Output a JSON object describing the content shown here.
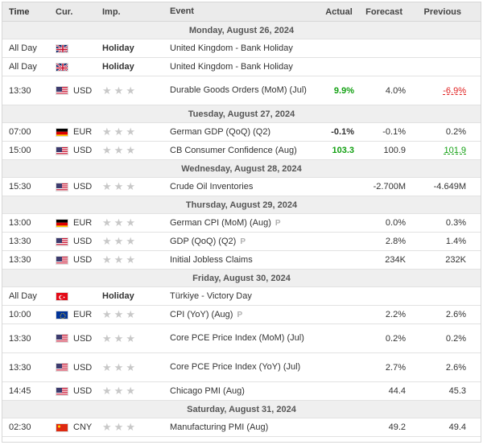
{
  "columns": {
    "time": "Time",
    "currency": "Cur.",
    "importance": "Imp.",
    "event": "Event",
    "actual": "Actual",
    "forecast": "Forecast",
    "previous": "Previous"
  },
  "colors": {
    "positive": "#12a012",
    "negative": "#e02020",
    "star_inactive": "#c8c8c8"
  },
  "days": [
    {
      "date": "Monday, August 26, 2024",
      "events": [
        {
          "time": "All Day",
          "flag": "uk-flag",
          "currency": "",
          "importance_text": "Holiday",
          "event": "United Kingdom - Bank Holiday",
          "actual": "",
          "forecast": "",
          "previous": "",
          "h": "h23"
        },
        {
          "time": "All Day",
          "flag": "uk-flag",
          "currency": "",
          "importance_text": "Holiday",
          "event": "United Kingdom - Bank Holiday",
          "actual": "",
          "forecast": "",
          "previous": "",
          "h": "h23"
        },
        {
          "time": "13:30",
          "flag": "us-flag",
          "currency": "USD",
          "stars": 3,
          "event": "Durable Goods Orders (MoM) (Jul)",
          "actual": "9.9%",
          "actual_color": "green",
          "forecast": "4.0%",
          "previous": "-6.9%",
          "previous_color": "red",
          "h": "h36"
        }
      ]
    },
    {
      "date": "Tuesday, August 27, 2024",
      "events": [
        {
          "time": "07:00",
          "flag": "de-flag",
          "currency": "EUR",
          "stars": 3,
          "event": "German GDP (QoQ) (Q2)",
          "actual": "-0.1%",
          "forecast": "-0.1%",
          "previous": "0.2%",
          "h": "h23"
        },
        {
          "time": "15:00",
          "flag": "us-flag",
          "currency": "USD",
          "stars": 3,
          "event": "CB Consumer Confidence (Aug)",
          "actual": "103.3",
          "actual_color": "green",
          "forecast": "100.9",
          "previous": "101.9",
          "previous_color": "green",
          "h": "h23"
        }
      ]
    },
    {
      "date": "Wednesday, August 28, 2024",
      "events": [
        {
          "time": "15:30",
          "flag": "us-flag",
          "currency": "USD",
          "stars": 3,
          "event": "Crude Oil Inventories",
          "actual": "",
          "forecast": "-2.700M",
          "previous": "-4.649M",
          "h": "h23"
        }
      ]
    },
    {
      "date": "Thursday, August 29, 2024",
      "events": [
        {
          "time": "13:00",
          "flag": "de-flag",
          "currency": "EUR",
          "stars": 3,
          "event": "German CPI (MoM) (Aug)",
          "pre": "P",
          "actual": "",
          "forecast": "0.0%",
          "previous": "0.3%",
          "h": "h23"
        },
        {
          "time": "13:30",
          "flag": "us-flag",
          "currency": "USD",
          "stars": 3,
          "event": "GDP (QoQ) (Q2)",
          "pre": "P",
          "actual": "",
          "forecast": "2.8%",
          "previous": "1.4%",
          "h": "h23"
        },
        {
          "time": "13:30",
          "flag": "us-flag",
          "currency": "USD",
          "stars": 3,
          "event": "Initial Jobless Claims",
          "actual": "",
          "forecast": "234K",
          "previous": "232K",
          "h": "h23"
        }
      ]
    },
    {
      "date": "Friday, August 30, 2024",
      "events": [
        {
          "time": "All Day",
          "flag": "tr-flag",
          "currency": "",
          "importance_text": "Holiday",
          "event": "Türkiye - Victory Day",
          "actual": "",
          "forecast": "",
          "previous": "",
          "h": "h23"
        },
        {
          "time": "10:00",
          "flag": "eu-flag",
          "currency": "EUR",
          "stars": 3,
          "event": "CPI (YoY) (Aug)",
          "pre": "P",
          "actual": "",
          "forecast": "2.2%",
          "previous": "2.6%",
          "h": "h23"
        },
        {
          "time": "13:30",
          "flag": "us-flag",
          "currency": "USD",
          "stars": 3,
          "event": "Core PCE Price Index (MoM) (Jul)",
          "actual": "",
          "forecast": "0.2%",
          "previous": "0.2%",
          "h": "h36"
        },
        {
          "time": "13:30",
          "flag": "us-flag",
          "currency": "USD",
          "stars": 3,
          "event": "Core PCE Price Index (YoY) (Jul)",
          "actual": "",
          "forecast": "2.7%",
          "previous": "2.6%",
          "h": "h36"
        },
        {
          "time": "14:45",
          "flag": "us-flag",
          "currency": "USD",
          "stars": 3,
          "event": "Chicago PMI (Aug)",
          "actual": "",
          "forecast": "44.4",
          "previous": "45.3",
          "h": "h23"
        }
      ]
    },
    {
      "date": "Saturday, August 31, 2024",
      "events": [
        {
          "time": "02:30",
          "flag": "cn-flag",
          "currency": "CNY",
          "stars": 3,
          "event": "Manufacturing PMI (Aug)",
          "actual": "",
          "forecast": "49.2",
          "previous": "49.4",
          "h": "h23"
        }
      ]
    }
  ]
}
